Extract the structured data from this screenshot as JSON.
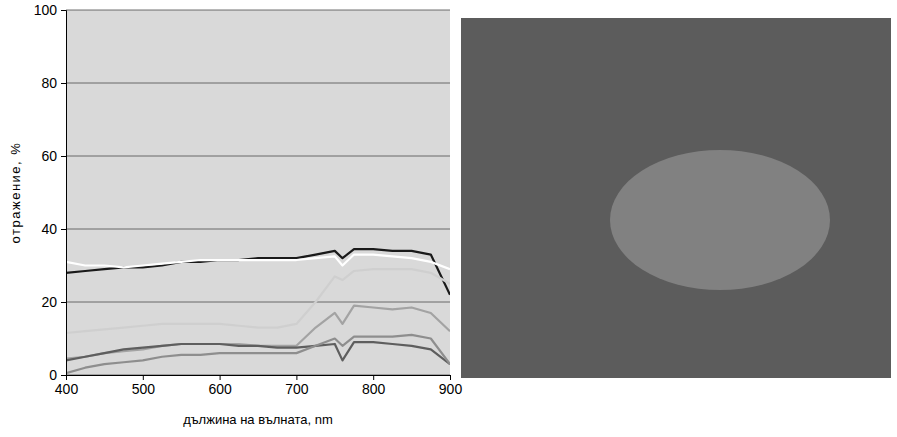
{
  "chart_data": {
    "type": "line",
    "x_label": "дължина на вълната, nm",
    "y_label": "отражение, %",
    "x": [
      400,
      425,
      450,
      475,
      500,
      525,
      550,
      575,
      600,
      625,
      650,
      675,
      700,
      725,
      750,
      760,
      775,
      800,
      825,
      850,
      875,
      900
    ],
    "series": [
      {
        "color": "#1a1a1a",
        "values": [
          28,
          28.5,
          29,
          29.5,
          29.5,
          30,
          31,
          31,
          31.5,
          31.5,
          32,
          32,
          32,
          33,
          34,
          32,
          34.5,
          34.5,
          34,
          34,
          33,
          22
        ]
      },
      {
        "color": "#ffffff",
        "values": [
          31,
          30,
          30,
          29.5,
          30,
          30.5,
          31,
          31.5,
          31.5,
          31.5,
          31.5,
          31.5,
          31.5,
          32,
          32.5,
          30,
          33,
          33,
          32.5,
          32,
          31,
          29
        ]
      },
      {
        "color": "#cfcfcf",
        "values": [
          11.5,
          12,
          12.5,
          13,
          13.5,
          14,
          14,
          14,
          14,
          13.5,
          13,
          13,
          14,
          20,
          27,
          26,
          28.5,
          29,
          29,
          29,
          28,
          25
        ]
      },
      {
        "color": "#a3a3a3",
        "values": [
          4.5,
          5,
          6,
          6.5,
          7,
          8,
          8.5,
          8.5,
          8.5,
          8.5,
          8,
          8,
          8,
          13,
          17,
          14,
          19,
          18.5,
          18,
          18.5,
          17,
          12
        ]
      },
      {
        "color": "#5e5e5e",
        "values": [
          4,
          5,
          6,
          7,
          7.5,
          8,
          8.5,
          8.5,
          8.5,
          8,
          8,
          7.5,
          7.5,
          8,
          8.5,
          4,
          9,
          9,
          8.5,
          8,
          7,
          3
        ]
      },
      {
        "color": "#8e8e8e",
        "values": [
          0.5,
          2,
          3,
          3.5,
          4,
          5,
          5.5,
          5.5,
          6,
          6,
          6,
          6,
          6,
          8,
          10,
          8,
          10.5,
          10.5,
          10.5,
          11,
          10,
          3
        ]
      }
    ],
    "xlim": [
      400,
      900
    ],
    "ylim": [
      0,
      100
    ],
    "xticks": [
      400,
      500,
      600,
      700,
      800,
      900
    ],
    "yticks": [
      0,
      20,
      40,
      60,
      80,
      100
    ],
    "grid": true
  }
}
